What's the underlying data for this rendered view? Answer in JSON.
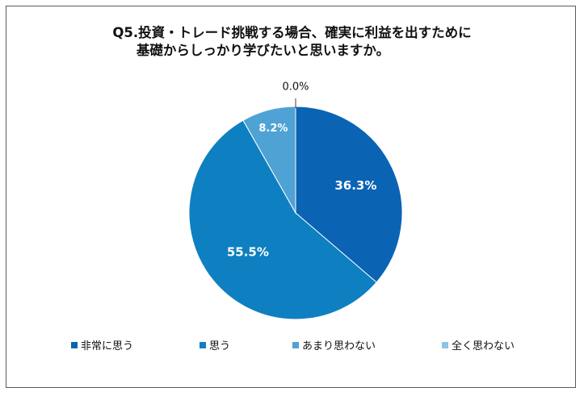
{
  "chart_data": {
    "type": "pie",
    "title_line1": "Q5.投資・トレード挑戦する場合、確実に利益を出すために",
    "title_line2": "基礎からしっかり学びたいと思いますか。",
    "categories": [
      "非常に思う",
      "思う",
      "あまり思わない",
      "全く思わない"
    ],
    "values": [
      36.3,
      55.5,
      8.2,
      0.0
    ],
    "labels": [
      "36.3%",
      "55.5%",
      "8.2%",
      "0.0%"
    ],
    "colors": [
      "#0B63B4",
      "#0E80C1",
      "#4FA2D4",
      "#8FC3E8"
    ],
    "legend_position": "bottom"
  }
}
